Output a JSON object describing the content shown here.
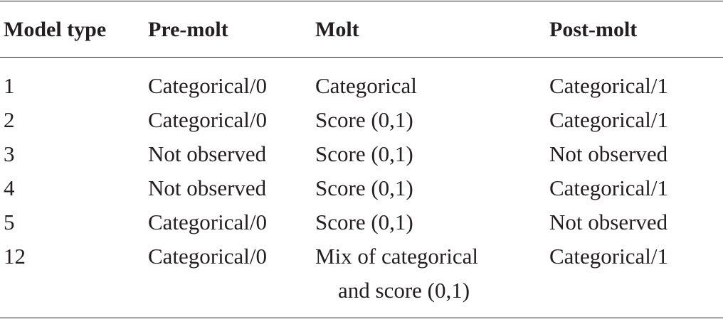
{
  "table": {
    "headers": [
      "Model type",
      "Pre-molt",
      "Molt",
      "Post-molt"
    ],
    "rows": [
      [
        "1",
        "Categorical/0",
        "Categorical",
        "Categorical/1"
      ],
      [
        "2",
        "Categorical/0",
        "Score (0,1)",
        "Categorical/1"
      ],
      [
        "3",
        "Not observed",
        "Score (0,1)",
        "Not observed"
      ],
      [
        "4",
        "Not observed",
        "Score (0,1)",
        "Categorical/1"
      ],
      [
        "5",
        "Categorical/0",
        "Score (0,1)",
        "Not observed"
      ],
      [
        "12",
        "Categorical/0",
        [
          "Mix of categorical",
          "and score (0,1)"
        ],
        "Categorical/1"
      ]
    ]
  }
}
